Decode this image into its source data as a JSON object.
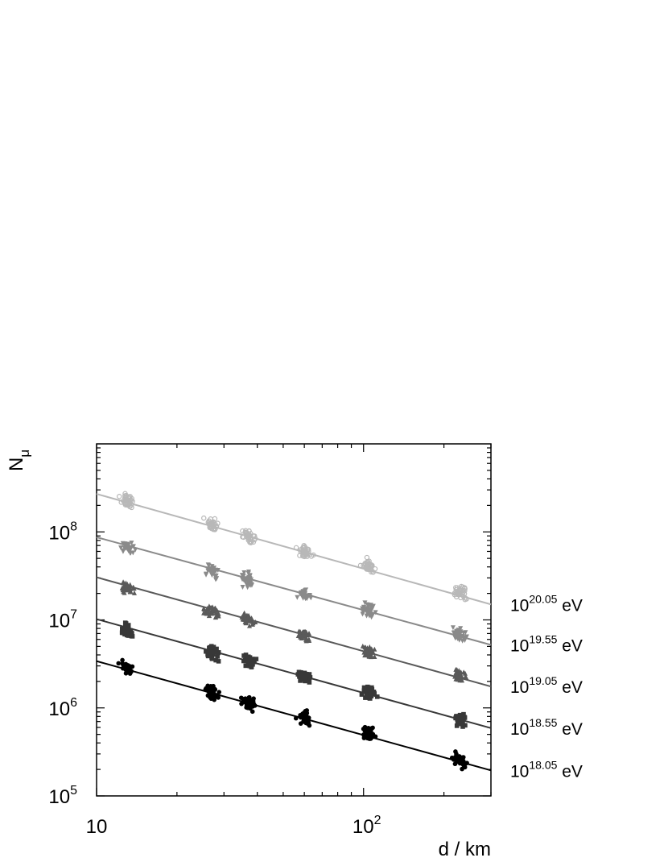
{
  "chart_data": {
    "type": "scatter",
    "title": "",
    "xlabel": "d / km",
    "ylabel_base": "N",
    "ylabel_sub": "μ",
    "xscale": "log",
    "yscale": "log",
    "xlim": [
      10,
      300
    ],
    "ylim": [
      100000,
      1000000000
    ],
    "grid": false,
    "legend": "none",
    "x_tick_labels": [
      {
        "value": 10,
        "base": "10",
        "exp": ""
      },
      {
        "value": 100,
        "base": "10",
        "exp": "2"
      }
    ],
    "y_tick_labels": [
      {
        "value": 100000,
        "base": "10",
        "exp": "5"
      },
      {
        "value": 1000000,
        "base": "10",
        "exp": "6"
      },
      {
        "value": 10000000,
        "base": "10",
        "exp": "7"
      },
      {
        "value": 100000000,
        "base": "10",
        "exp": "8"
      }
    ],
    "distance_clusters_km": [
      13,
      27,
      37,
      60,
      105,
      230
    ],
    "series": [
      {
        "label_base": "10",
        "label_exp": "18.05",
        "label_unit": "eV",
        "color": "#000000",
        "marker": "circle-filled",
        "fit_line": [
          [
            10,
            3400000
          ],
          [
            300,
            195000
          ]
        ],
        "cluster_means": [
          2800000,
          1500000,
          1150000,
          780000,
          500000,
          250000
        ]
      },
      {
        "label_base": "10",
        "label_exp": "18.55",
        "label_unit": "eV",
        "color": "#383838",
        "marker": "square-filled",
        "fit_line": [
          [
            10,
            10200000
          ],
          [
            300,
            590000
          ]
        ],
        "cluster_means": [
          7600000,
          4200000,
          3350000,
          2200000,
          1480000,
          740000
        ]
      },
      {
        "label_base": "10",
        "label_exp": "19.05",
        "label_unit": "eV",
        "color": "#5a5a5a",
        "marker": "triangle-up-filled",
        "fit_line": [
          [
            10,
            30500000
          ],
          [
            300,
            1750000
          ]
        ],
        "cluster_means": [
          23000000,
          12500000,
          10000000,
          6600000,
          4200000,
          2300000
        ]
      },
      {
        "label_base": "10",
        "label_exp": "19.55",
        "label_unit": "eV",
        "color": "#8a8a8a",
        "marker": "triangle-down-filled",
        "fit_line": [
          [
            10,
            87000000
          ],
          [
            300,
            5200000
          ]
        ],
        "cluster_means": [
          68000000,
          37000000,
          28000000,
          19500000,
          13000000,
          6800000
        ]
      },
      {
        "label_base": "10",
        "label_exp": "20.05",
        "label_unit": "eV",
        "color": "#b8b8b8",
        "marker": "circle-open",
        "fit_line": [
          [
            10,
            270000000
          ],
          [
            300,
            15000000
          ]
        ],
        "cluster_means": [
          230000000,
          118000000,
          88000000,
          60000000,
          40000000,
          21000000
        ]
      }
    ]
  }
}
